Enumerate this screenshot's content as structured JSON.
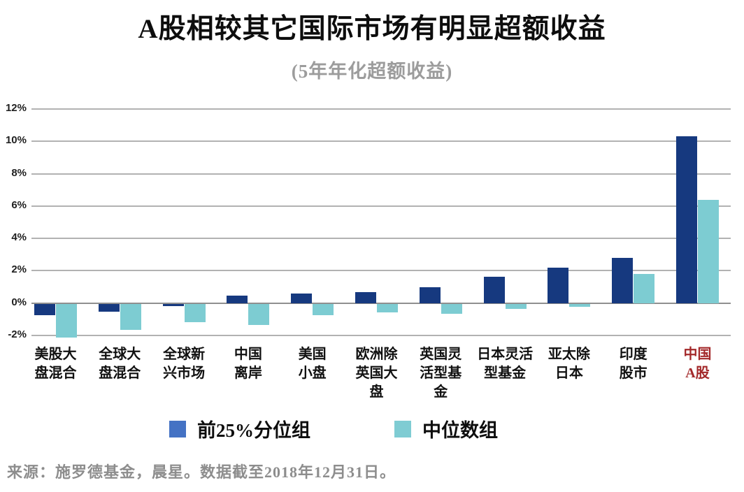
{
  "title": "A股相较其它国际市场有明显超额收益",
  "subtitle": "(5年年化超额收益)",
  "source_note": "来源：施罗德基金，晨星。数据截至2018年12月31日。",
  "colors": {
    "bar_dark_blue": "#16397f",
    "bar_teal": "#7dccd2",
    "legend_blue": "#4472c4",
    "legend_teal": "#7fccd3",
    "gridline": "#b2b2b2",
    "zero_line": "#8f8f8f",
    "highlight_red": "#a3292a",
    "subtitle_gray": "#9c9c9c",
    "source_gray": "#8d8d8d"
  },
  "legend": [
    {
      "label": "前25%分位组",
      "color": "#4472c4"
    },
    {
      "label": "中位数组",
      "color": "#7fccd3"
    }
  ],
  "chart_data": {
    "type": "bar",
    "title": "A股相较其它国际市场有明显超额收益",
    "subtitle": "(5年年化超额收益)",
    "categories": [
      "美股大盘混合",
      "全球大盘混合",
      "全球新兴市场",
      "中国离岸",
      "美国小盘",
      "欧洲除英国大盘",
      "英国灵活型基金",
      "日本灵活型基金",
      "亚太除日本",
      "印度股市",
      "中国A股"
    ],
    "category_display": [
      "美股大\n盘混合",
      "全球大\n盘混合",
      "全球新\n兴市场",
      "中国\n离岸",
      "美国\n小盘",
      "欧洲除\n英国大\n盘",
      "英国灵\n活型基\n金",
      "日本灵活\n型基金",
      "亚太除\n日本",
      "印度\n股市",
      "中国\nA股"
    ],
    "series": [
      {
        "name": "前25%分位组",
        "color": "#16397f",
        "values": [
          -0.7,
          -0.5,
          -0.15,
          0.45,
          0.6,
          0.7,
          1.0,
          1.65,
          2.2,
          2.8,
          10.3
        ]
      },
      {
        "name": "中位数组",
        "color": "#7dccd2",
        "values": [
          -2.1,
          -1.6,
          -1.15,
          -1.3,
          -0.7,
          -0.55,
          -0.6,
          -0.3,
          -0.2,
          1.8,
          6.4
        ]
      }
    ],
    "xlabel": "",
    "ylabel": "",
    "ylim": [
      -2,
      12
    ],
    "yticks": [
      "12%",
      "10%",
      "8%",
      "6%",
      "4%",
      "2%",
      "0%",
      "-2%"
    ],
    "grid": "horizontal",
    "legend_position": "bottom",
    "highlight_category": "中国A股",
    "highlight_color": "#a3292a"
  }
}
